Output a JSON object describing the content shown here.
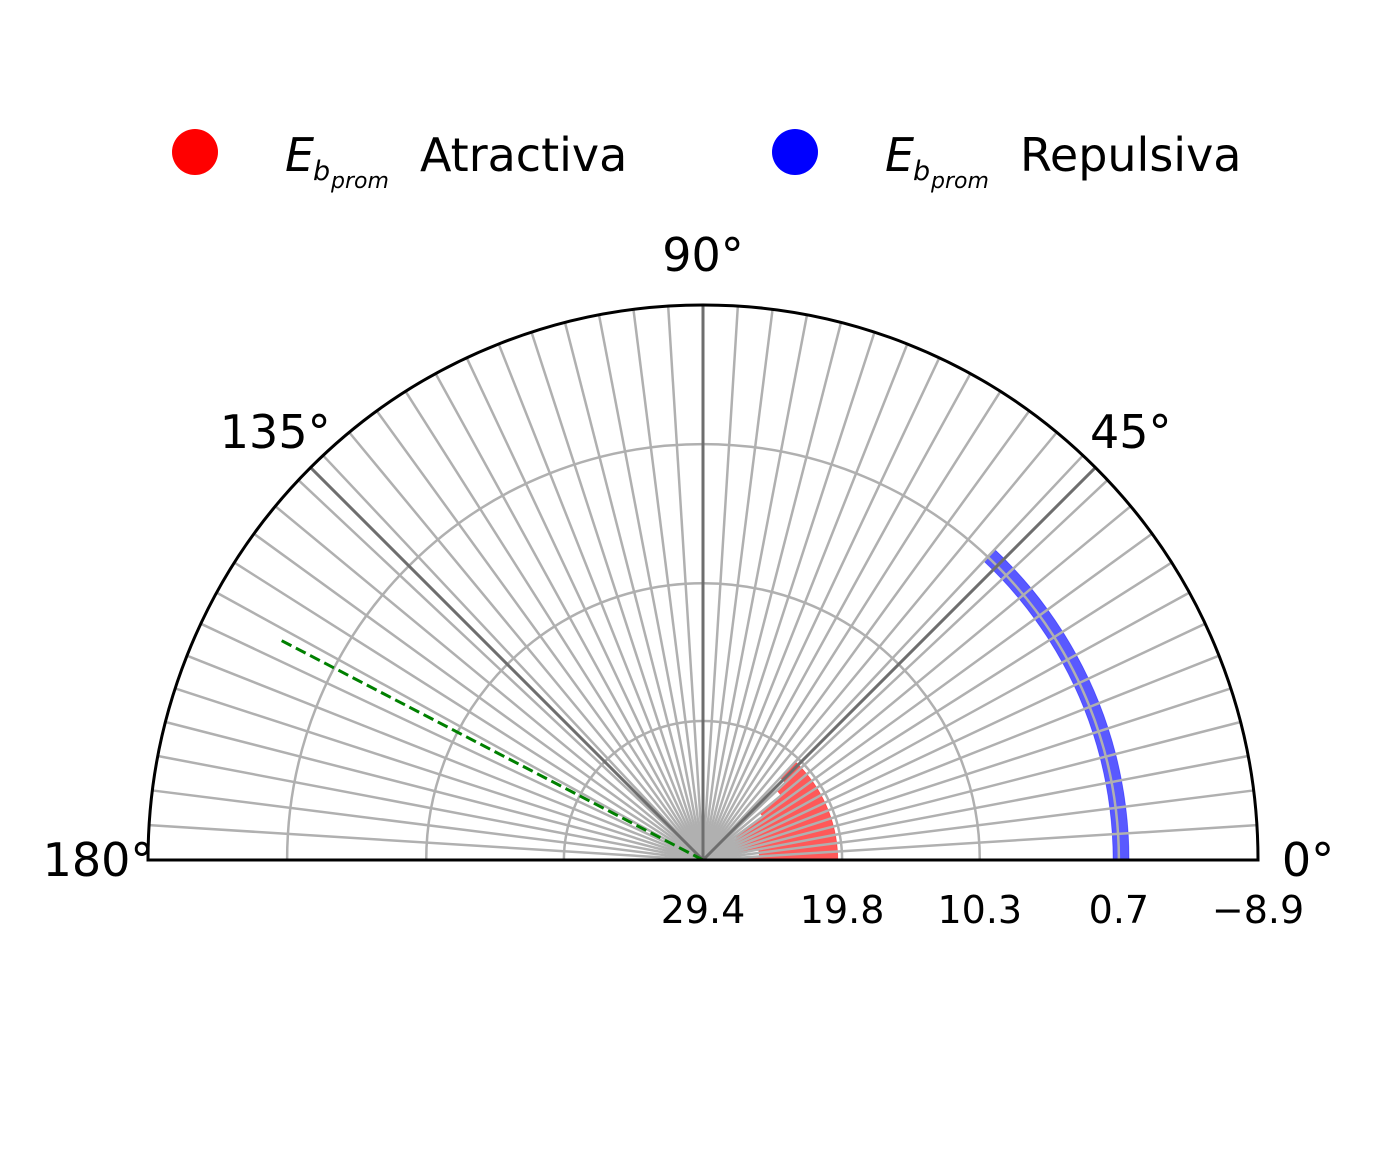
{
  "legend": {
    "attractive": {
      "symbol": "E",
      "subscript": "b",
      "subsubscript": "prom",
      "label": "Atractiva",
      "color": "#ff0000"
    },
    "repulsive": {
      "symbol": "E",
      "subscript": "b",
      "subsubscript": "prom",
      "label": "Repulsiva",
      "color": "#0000ff"
    }
  },
  "chart_data": {
    "type": "polar-bar",
    "angular_range_deg": [
      0,
      180
    ],
    "angle_tick_labels": [
      "0°",
      "45°",
      "90°",
      "135°",
      "180°"
    ],
    "angle_ticks_deg": [
      0,
      45,
      90,
      135,
      180
    ],
    "radial_axis_inverted": true,
    "radial_limits": {
      "center": 29.4,
      "outer": -8.9
    },
    "radial_tick_labels": [
      "29.4",
      "19.8",
      "10.3",
      "0.7",
      "−8.9"
    ],
    "radial_ticks": [
      29.4,
      19.8,
      10.3,
      0.7,
      -8.9
    ],
    "bin_width_deg": 3.6,
    "grid": true,
    "threshold_line": {
      "angle_deg": 152.5,
      "style": "dashed",
      "color": "#008000"
    },
    "series": [
      {
        "name": "Atractiva",
        "color": "#ff0000",
        "alpha": 0.65,
        "bars": [
          {
            "angle_deg": 1.8,
            "base": 20.1,
            "value": 27.7
          },
          {
            "angle_deg": 5.4,
            "base": 20.1,
            "value": 25.5
          },
          {
            "angle_deg": 9.0,
            "base": 20.1,
            "value": 25.5
          },
          {
            "angle_deg": 12.6,
            "base": 20.1,
            "value": 27.2
          },
          {
            "angle_deg": 16.2,
            "base": 20.1,
            "value": 27.2
          },
          {
            "angle_deg": 19.8,
            "base": 20.1,
            "value": 27.2
          },
          {
            "angle_deg": 23.4,
            "base": 20.1,
            "value": 27.1
          },
          {
            "angle_deg": 27.0,
            "base": 20.1,
            "value": 27.1
          },
          {
            "angle_deg": 30.6,
            "base": 20.1,
            "value": 26.8
          },
          {
            "angle_deg": 34.2,
            "base": 20.1,
            "value": 26.6
          },
          {
            "angle_deg": 37.8,
            "base": 20.1,
            "value": 24.3
          },
          {
            "angle_deg": 41.4,
            "base": 20.1,
            "value": 22.4
          },
          {
            "angle_deg": 45.0,
            "base": 20.1,
            "value": 21.6
          }
        ]
      },
      {
        "name": "Repulsiva",
        "color": "#0000ff",
        "alpha": 0.65,
        "bars": [
          {
            "angle_deg": 1.8,
            "base": 0,
            "value": 1.1
          },
          {
            "angle_deg": 5.4,
            "base": 0,
            "value": 1.1
          },
          {
            "angle_deg": 9.0,
            "base": 0,
            "value": 1.1
          },
          {
            "angle_deg": 12.6,
            "base": 0,
            "value": 1.1
          },
          {
            "angle_deg": 16.2,
            "base": 0,
            "value": 1.1
          },
          {
            "angle_deg": 19.8,
            "base": 0,
            "value": 1.1
          },
          {
            "angle_deg": 23.4,
            "base": 0,
            "value": 1.1
          },
          {
            "angle_deg": 27.0,
            "base": 0,
            "value": 1.1
          },
          {
            "angle_deg": 30.6,
            "base": 0,
            "value": 1.1
          },
          {
            "angle_deg": 34.2,
            "base": 0,
            "value": 1.1
          },
          {
            "angle_deg": 37.8,
            "base": 0,
            "value": 1.1
          },
          {
            "angle_deg": 41.4,
            "base": 0,
            "value": 1.1
          },
          {
            "angle_deg": 45.0,
            "base": 0,
            "value": 1.1
          }
        ]
      }
    ]
  }
}
